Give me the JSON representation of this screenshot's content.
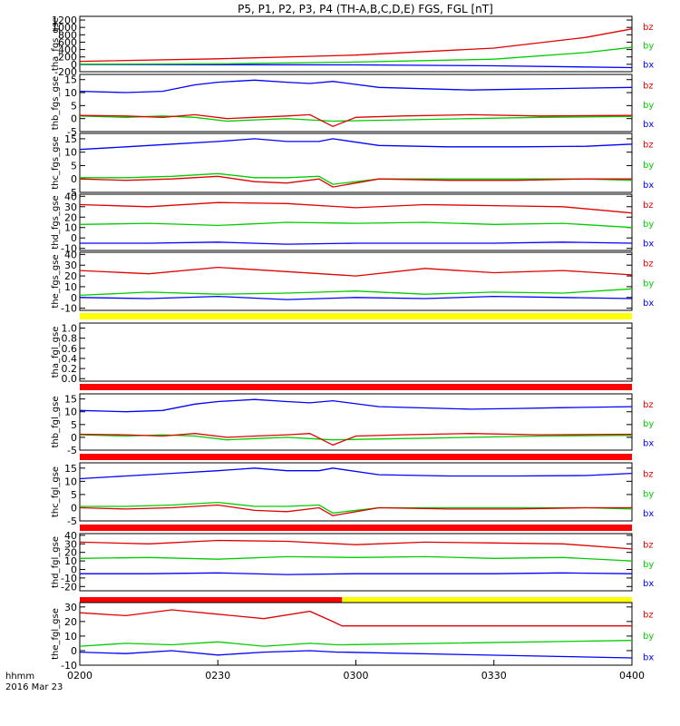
{
  "chart_data": {
    "type": "line",
    "title": "P5, P1, P2, P3, P4 (TH-A,B,C,D,E) FGS, FGL [nT]",
    "x_axis": {
      "ticks": [
        "0200",
        "0230",
        "0300",
        "0330",
        "0400"
      ],
      "range_minutes": [
        0,
        120
      ],
      "footer_label": "hhmm",
      "footer_date": "2016 Mar 23"
    },
    "colors": {
      "bx": "#0000ff",
      "by": "#00cc00",
      "bz": "#e00000",
      "flag_yellow": "#ffff00",
      "flag_red": "#ff0000"
    },
    "panels": [
      {
        "ylabel": "tha_fgs_gse",
        "ylim": [
          -200,
          1300
        ],
        "yticks": [
          "-200",
          "0",
          "200",
          "400",
          "600",
          "800",
          "1000",
          "1200"
        ],
        "legend": [
          "bz",
          "by",
          "bx"
        ],
        "series": [
          {
            "name": "bx",
            "x": [
              0,
              30,
              60,
              90,
              120
            ],
            "values": [
              -5,
              -10,
              -15,
              -40,
              -90
            ]
          },
          {
            "name": "by",
            "x": [
              0,
              30,
              60,
              90,
              110,
              120
            ],
            "values": [
              5,
              15,
              60,
              140,
              320,
              460
            ]
          },
          {
            "name": "bz",
            "x": [
              0,
              30,
              60,
              90,
              110,
              120
            ],
            "values": [
              80,
              150,
              250,
              440,
              730,
              960
            ]
          }
        ]
      },
      {
        "ylabel": "thb_fgs_gse",
        "ylim": [
          -5,
          17
        ],
        "yticks": [
          "-5",
          "0",
          "5",
          "10",
          "15"
        ],
        "legend": [
          "bz",
          "by",
          "bx"
        ],
        "series": [
          {
            "name": "bx",
            "x": [
              0,
              10,
              18,
              25,
              30,
              38,
              45,
              50,
              55,
              65,
              75,
              85,
              95,
              105,
              120
            ],
            "values": [
              10.5,
              10,
              10.5,
              13,
              14,
              14.8,
              14,
              13.5,
              14.3,
              12,
              11.5,
              11,
              11.3,
              11.6,
              12
            ]
          },
          {
            "name": "by",
            "x": [
              0,
              10,
              18,
              25,
              32,
              38,
              45,
              50,
              55,
              60,
              70,
              85,
              100,
              120
            ],
            "values": [
              1,
              0.5,
              1,
              0.5,
              -1,
              -0.5,
              0,
              -0.5,
              -1,
              -0.8,
              -0.5,
              0,
              0.5,
              0.8
            ]
          },
          {
            "name": "bz",
            "x": [
              0,
              10,
              18,
              25,
              32,
              38,
              45,
              50,
              55,
              60,
              70,
              85,
              100,
              120
            ],
            "values": [
              1.2,
              1,
              0.5,
              1.5,
              0,
              0.5,
              1,
              1.5,
              -3,
              0.5,
              1,
              1.5,
              1,
              1.2
            ]
          }
        ]
      },
      {
        "ylabel": "thc_fgs_gse",
        "ylim": [
          -5,
          17
        ],
        "yticks": [
          "-5",
          "0",
          "5",
          "10",
          "15"
        ],
        "legend": [
          "bz",
          "by",
          "bx"
        ],
        "series": [
          {
            "name": "bx",
            "x": [
              0,
              10,
              20,
              30,
              38,
              45,
              52,
              55,
              65,
              80,
              95,
              110,
              120
            ],
            "values": [
              11,
              12,
              13,
              14,
              15,
              14,
              14,
              15,
              12.5,
              12,
              12,
              12.2,
              13
            ]
          },
          {
            "name": "by",
            "x": [
              0,
              10,
              20,
              30,
              38,
              45,
              52,
              55,
              65,
              80,
              95,
              110,
              120
            ],
            "values": [
              0.5,
              0.5,
              1,
              2,
              0.5,
              0.5,
              1,
              -2,
              0,
              0,
              0,
              0,
              -0.5
            ]
          },
          {
            "name": "bz",
            "x": [
              0,
              10,
              20,
              30,
              38,
              45,
              52,
              55,
              65,
              80,
              95,
              110,
              120
            ],
            "values": [
              0,
              -0.5,
              0,
              1,
              -1,
              -1.5,
              0,
              -3,
              0,
              -0.5,
              -0.5,
              0,
              0
            ]
          }
        ]
      },
      {
        "ylabel": "thd_fgs_gse",
        "ylim": [
          -12,
          42
        ],
        "yticks": [
          "-10",
          "0",
          "10",
          "20",
          "30",
          "40"
        ],
        "legend": [
          "bz",
          "by",
          "bx"
        ],
        "series": [
          {
            "name": "bx",
            "x": [
              0,
              15,
              30,
              45,
              60,
              75,
              90,
              105,
              120
            ],
            "values": [
              -5,
              -5,
              -4,
              -6,
              -5,
              -5,
              -5,
              -4,
              -5
            ]
          },
          {
            "name": "by",
            "x": [
              0,
              15,
              30,
              45,
              60,
              75,
              90,
              105,
              120
            ],
            "values": [
              13,
              14,
              12,
              15,
              14,
              15,
              13,
              14,
              10
            ]
          },
          {
            "name": "bz",
            "x": [
              0,
              15,
              30,
              45,
              60,
              75,
              90,
              105,
              120
            ],
            "values": [
              32,
              30,
              34,
              33,
              29,
              32,
              31,
              30,
              24
            ]
          }
        ]
      },
      {
        "ylabel": "the_fgs_gse",
        "ylim": [
          -12,
          42
        ],
        "yticks": [
          "-10",
          "0",
          "10",
          "20",
          "30",
          "40"
        ],
        "legend": [
          "bz",
          "by",
          "bx"
        ],
        "series": [
          {
            "name": "bx",
            "x": [
              0,
              15,
              30,
              45,
              60,
              75,
              90,
              105,
              120
            ],
            "values": [
              0,
              -1,
              1,
              -2,
              0,
              -1,
              1,
              0,
              -1
            ]
          },
          {
            "name": "by",
            "x": [
              0,
              15,
              30,
              45,
              60,
              75,
              90,
              105,
              120
            ],
            "values": [
              2,
              5,
              3,
              4,
              6,
              3,
              5,
              4,
              8
            ]
          },
          {
            "name": "bz",
            "x": [
              0,
              15,
              30,
              45,
              60,
              75,
              90,
              105,
              120
            ],
            "values": [
              25,
              22,
              28,
              24,
              20,
              27,
              23,
              25,
              21
            ]
          }
        ]
      },
      {
        "ylabel": "tha_fgl_gse",
        "ylim": [
          -0.05,
          1.1
        ],
        "yticks": [
          "0.0",
          "0.2",
          "0.4",
          "0.6",
          "0.8",
          "1.0"
        ],
        "legend": [],
        "series": []
      },
      {
        "ylabel": "thb_fgl_gse",
        "ylim": [
          -5,
          17
        ],
        "yticks": [
          "-5",
          "0",
          "5",
          "10",
          "15"
        ],
        "legend": [
          "bz",
          "by",
          "bx"
        ],
        "series": [
          {
            "name": "bx",
            "x": [
              0,
              10,
              18,
              25,
              30,
              38,
              45,
              50,
              55,
              65,
              75,
              85,
              95,
              105,
              120
            ],
            "values": [
              10.5,
              10,
              10.5,
              13,
              14,
              14.8,
              14,
              13.5,
              14.3,
              12,
              11.5,
              11,
              11.3,
              11.6,
              12
            ]
          },
          {
            "name": "by",
            "x": [
              0,
              10,
              18,
              25,
              32,
              38,
              45,
              50,
              55,
              60,
              70,
              85,
              100,
              120
            ],
            "values": [
              1,
              0.5,
              1,
              0.5,
              -1,
              -0.5,
              0,
              -0.5,
              -1,
              -0.8,
              -0.5,
              0,
              0.5,
              0.8
            ]
          },
          {
            "name": "bz",
            "x": [
              0,
              10,
              18,
              25,
              32,
              38,
              45,
              50,
              55,
              60,
              70,
              85,
              100,
              120
            ],
            "values": [
              1.2,
              1,
              0.5,
              1.5,
              0,
              0.5,
              1,
              1.5,
              -3,
              0.5,
              1,
              1.5,
              1,
              1.2
            ]
          }
        ]
      },
      {
        "ylabel": "thc_fgl_gse",
        "ylim": [
          -5,
          17
        ],
        "yticks": [
          "-5",
          "0",
          "5",
          "10",
          "15"
        ],
        "legend": [
          "bz",
          "by",
          "bx"
        ],
        "series": [
          {
            "name": "bx",
            "x": [
              0,
              10,
              20,
              30,
              38,
              45,
              52,
              55,
              65,
              80,
              95,
              110,
              120
            ],
            "values": [
              11,
              12,
              13,
              14,
              15,
              14,
              14,
              15,
              12.5,
              12,
              12,
              12.2,
              13
            ]
          },
          {
            "name": "by",
            "x": [
              0,
              10,
              20,
              30,
              38,
              45,
              52,
              55,
              65,
              80,
              95,
              110,
              120
            ],
            "values": [
              0.5,
              0.5,
              1,
              2,
              0.5,
              0.5,
              1,
              -2,
              0,
              0,
              0,
              0,
              -0.5
            ]
          },
          {
            "name": "bz",
            "x": [
              0,
              10,
              20,
              30,
              38,
              45,
              52,
              55,
              65,
              80,
              95,
              110,
              120
            ],
            "values": [
              0,
              -0.5,
              0,
              1,
              -1,
              -1.5,
              0,
              -3,
              0,
              -0.5,
              -0.5,
              0,
              0
            ]
          }
        ]
      },
      {
        "ylabel": "thd_fgl_gse",
        "ylim": [
          -25,
          42
        ],
        "yticks": [
          "-20",
          "-10",
          "0",
          "10",
          "20",
          "30",
          "40"
        ],
        "legend": [
          "bz",
          "by",
          "bx"
        ],
        "series": [
          {
            "name": "bx",
            "x": [
              0,
              15,
              30,
              45,
              60,
              75,
              90,
              105,
              120
            ],
            "values": [
              -5,
              -5,
              -4,
              -6,
              -5,
              -5,
              -5,
              -4,
              -5
            ]
          },
          {
            "name": "by",
            "x": [
              0,
              15,
              30,
              45,
              60,
              75,
              90,
              105,
              120
            ],
            "values": [
              13,
              14,
              12,
              15,
              14,
              15,
              13,
              14,
              10
            ]
          },
          {
            "name": "bz",
            "x": [
              0,
              15,
              30,
              45,
              60,
              75,
              90,
              105,
              120
            ],
            "values": [
              32,
              30,
              34,
              33,
              29,
              32,
              31,
              30,
              24
            ]
          }
        ]
      },
      {
        "ylabel": "the_fgl_gse",
        "ylim": [
          -10,
          33
        ],
        "yticks": [
          "-10",
          "0",
          "10",
          "20",
          "30"
        ],
        "legend": [
          "bz",
          "by",
          "bx"
        ],
        "series": [
          {
            "name": "bx",
            "x": [
              0,
              10,
              20,
              30,
              40,
              50,
              56,
              57,
              120
            ],
            "values": [
              -1,
              -2,
              0,
              -3,
              -1,
              0,
              -1,
              -1,
              -5
            ]
          },
          {
            "name": "by",
            "x": [
              0,
              10,
              20,
              30,
              40,
              50,
              56,
              57,
              120
            ],
            "values": [
              3,
              5,
              4,
              6,
              3,
              5,
              4,
              4,
              7
            ]
          },
          {
            "name": "bz",
            "x": [
              0,
              10,
              20,
              30,
              40,
              50,
              55,
              57,
              120
            ],
            "values": [
              26,
              24,
              28,
              25,
              22,
              27,
              20,
              17,
              17
            ]
          }
        ]
      }
    ]
  }
}
